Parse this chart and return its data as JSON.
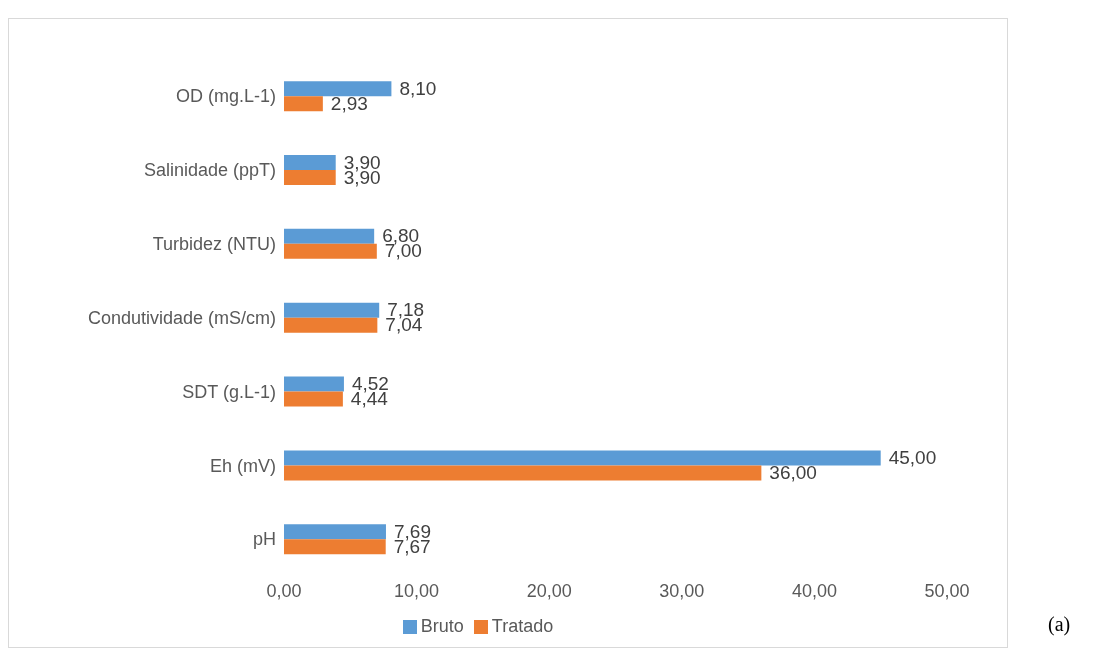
{
  "chart_data": {
    "type": "bar",
    "orientation": "horizontal",
    "categories": [
      "OD (mg.L-1)",
      "Salinidade (ppT)",
      "Turbidez (NTU)",
      "Condutividade (mS/cm)",
      "SDT (g.L-1)",
      "Eh (mV)",
      "pH"
    ],
    "series": [
      {
        "name": "Bruto",
        "color": "#5b9bd5",
        "values": [
          8.1,
          3.9,
          6.8,
          7.18,
          4.52,
          45,
          7.69
        ],
        "value_labels": [
          "8,10",
          "3,90",
          "6,80",
          "7,18",
          "4,52",
          "45,00",
          "7,69"
        ]
      },
      {
        "name": "Tratado",
        "color": "#ed7d31",
        "values": [
          2.93,
          3.9,
          7,
          7.04,
          4.44,
          36,
          7.67
        ],
        "value_labels": [
          "2,93",
          "3,90",
          "7,00",
          "7,04",
          "4,44",
          "36,00",
          "7,67"
        ]
      }
    ],
    "xlim": [
      0,
      50
    ],
    "xticks": [
      {
        "value": 0,
        "label": "0,00"
      },
      {
        "value": 10,
        "label": "10,00"
      },
      {
        "value": 20,
        "label": "20,00"
      },
      {
        "value": 30,
        "label": "30,00"
      },
      {
        "value": 40,
        "label": "40,00"
      },
      {
        "value": 50,
        "label": "50,00"
      }
    ],
    "legend": "bottom",
    "annotations": [
      "(a)"
    ]
  }
}
